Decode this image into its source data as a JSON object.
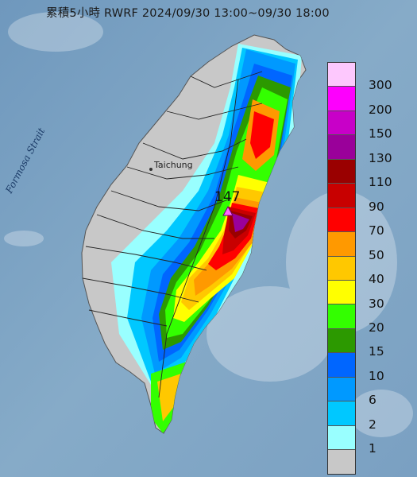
{
  "title": "累積5小時 RWRF 2024/09/30 13:00~09/30 18:00",
  "map": {
    "strait_label": "Formosa Strait",
    "city_label": "Taichung",
    "max_value_label": "147",
    "marker_icon": "triangle-marker-icon"
  },
  "legend": {
    "labels": [
      "300",
      "200",
      "150",
      "130",
      "110",
      "90",
      "70",
      "50",
      "40",
      "30",
      "20",
      "15",
      "10",
      "6",
      "2",
      "1"
    ],
    "colors": [
      "#fdc8fd",
      "#fd00fd",
      "#c800c8",
      "#9a009a",
      "#9a0000",
      "#c80000",
      "#ff0000",
      "#ff9900",
      "#ffc800",
      "#ffff00",
      "#33ff00",
      "#2c9900",
      "#0066ff",
      "#0099ff",
      "#00c8ff",
      "#99ffff",
      "#c8c8c8"
    ]
  }
}
